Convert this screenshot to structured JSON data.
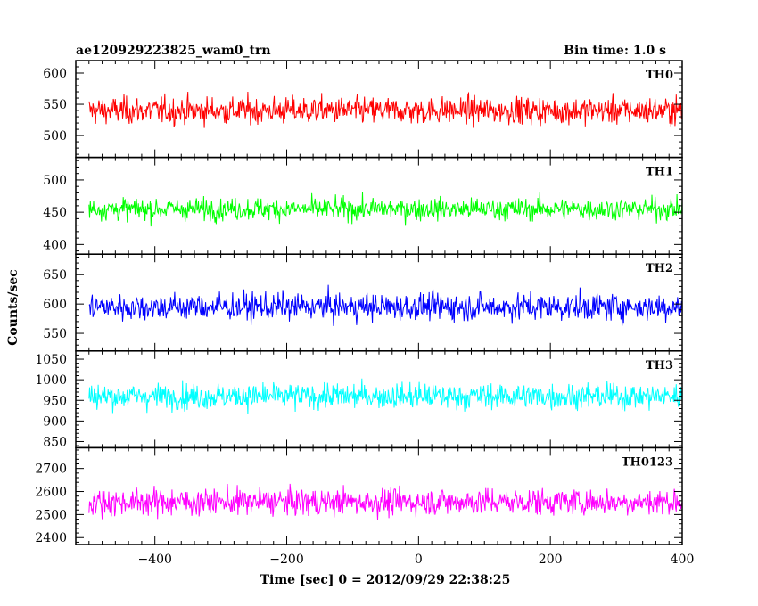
{
  "chart_data": {
    "type": "line",
    "title_left": "ae120929223825_wam0_trn",
    "title_right": "Bin time: 1.0 s",
    "xlabel": "Time [sec] 0 = 2012/09/29 22:38:25",
    "ylabel": "Counts/sec",
    "xlim": [
      -520,
      400
    ],
    "x_ticks": [
      -400,
      -200,
      0,
      200,
      400
    ],
    "x_tick_labels": [
      "−400",
      "−200",
      "0",
      "200",
      "400"
    ],
    "x_range_data": [
      -500,
      400
    ],
    "bin_time": 1.0,
    "grid": false,
    "series": [
      {
        "name": "TH0",
        "color": "#ff0000",
        "ylim": [
          465,
          620
        ],
        "y_ticks": [
          500,
          550,
          600
        ],
        "mean": 540,
        "spread": 28
      },
      {
        "name": "TH1",
        "color": "#00ff00",
        "ylim": [
          385,
          535
        ],
        "y_ticks": [
          400,
          450,
          500
        ],
        "mean": 455,
        "spread": 22
      },
      {
        "name": "TH2",
        "color": "#0000ff",
        "ylim": [
          520,
          685
        ],
        "y_ticks": [
          550,
          600,
          650
        ],
        "mean": 595,
        "spread": 30
      },
      {
        "name": "TH3",
        "color": "#00ffff",
        "ylim": [
          835,
          1070
        ],
        "y_ticks": [
          850,
          900,
          950,
          1000,
          1050
        ],
        "mean": 960,
        "spread": 40
      },
      {
        "name": "TH0123",
        "color": "#ff00ff",
        "ylim": [
          2370,
          2790
        ],
        "y_ticks": [
          2400,
          2500,
          2600,
          2700
        ],
        "mean": 2555,
        "spread": 75
      }
    ]
  }
}
